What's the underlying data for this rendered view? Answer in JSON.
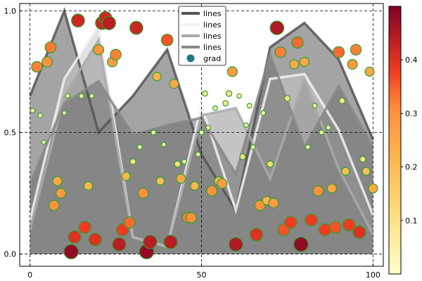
{
  "chart_data": {
    "type": "area",
    "title": "",
    "xlabel": "",
    "ylabel": "",
    "xlim": [
      -3,
      103
    ],
    "ylim": [
      -0.05,
      1.03
    ],
    "xticks": [
      0,
      50,
      100
    ],
    "xtick_labels": [
      "0",
      "50",
      "100"
    ],
    "yticks": [
      0.0,
      0.5,
      1.0
    ],
    "ytick_labels": [
      "0.0",
      "0.5",
      "1.0"
    ],
    "grid": true,
    "grid_style": "dashed",
    "legend_position": "top-center",
    "series": [
      {
        "name": "lines",
        "style": "thick-dark-grey",
        "color": "#555555",
        "x": [
          0,
          10,
          20,
          30,
          40,
          50,
          60,
          70,
          80,
          90,
          100
        ],
        "y": [
          0.65,
          1.0,
          0.5,
          0.65,
          0.84,
          0.41,
          0.18,
          0.85,
          0.95,
          0.8,
          0.47
        ]
      },
      {
        "name": "lines",
        "style": "thick-white",
        "color": "#f2f2f2",
        "x": [
          0,
          10,
          20,
          30,
          40,
          50,
          60,
          70,
          80,
          90,
          100
        ],
        "y": [
          0.14,
          0.72,
          0.94,
          0.07,
          0.03,
          0.61,
          0.18,
          0.72,
          0.74,
          0.51,
          0.16
        ]
      },
      {
        "name": "lines",
        "style": "thick-light-grey",
        "color": "#aaaaaa",
        "x": [
          0,
          10,
          20,
          30,
          40,
          50,
          60,
          70,
          80,
          90,
          100
        ],
        "y": [
          0.1,
          0.65,
          0.88,
          0.07,
          0.03,
          0.57,
          0.6,
          0.31,
          0.72,
          0.35,
          0.08
        ]
      },
      {
        "name": "lines",
        "style": "thick-mid-grey",
        "color": "#888888",
        "x": [
          0,
          10,
          20,
          30,
          40,
          50,
          60,
          70,
          80,
          90,
          100
        ],
        "y": [
          0.29,
          0.62,
          0.71,
          0.49,
          0.53,
          0.56,
          0.33,
          0.82,
          0.44,
          0.69,
          0.44
        ]
      }
    ],
    "scatter": {
      "name": "grad",
      "x": [
        0.8,
        2,
        3,
        4,
        5,
        6,
        7,
        8,
        9,
        10,
        11,
        12,
        13,
        14,
        15,
        16,
        17,
        18,
        19,
        20,
        21,
        22,
        23,
        24,
        25,
        26,
        27,
        28,
        29,
        30,
        31,
        32,
        33,
        34,
        35,
        36,
        37,
        38,
        39,
        40,
        41,
        42,
        43,
        44,
        45,
        46,
        47,
        48,
        49,
        50,
        51,
        52,
        53,
        54,
        55,
        56,
        57,
        58,
        59,
        60,
        61,
        62,
        63,
        64,
        65,
        66,
        67,
        68,
        69,
        70,
        71,
        72,
        73,
        74,
        75,
        76,
        77,
        78,
        79,
        80,
        81,
        82,
        83,
        84,
        85,
        86,
        87,
        88,
        89,
        90,
        91,
        92,
        93,
        94,
        95,
        96,
        97,
        98,
        99,
        100
      ],
      "y": [
        0.59,
        0.77,
        0.57,
        0.46,
        0.79,
        0.85,
        0.2,
        0.3,
        0.25,
        0.58,
        0.65,
        0.01,
        0.07,
        0.96,
        0.65,
        0.11,
        0.28,
        0.65,
        0.06,
        0.84,
        0.95,
        0.97,
        0.95,
        0.79,
        0.82,
        0.04,
        0.1,
        0.32,
        0.13,
        0.38,
        0.93,
        0.44,
        0.25,
        0.01,
        0.05,
        0.5,
        0.73,
        0.3,
        0.45,
        0.88,
        0.05,
        0.7,
        0.37,
        0.31,
        0.38,
        0.15,
        0.15,
        0.28,
        0.41,
        0.5,
        0.66,
        0.52,
        0.26,
        0.6,
        0.3,
        0.29,
        0.62,
        0.66,
        0.75,
        0.04,
        0.65,
        0.4,
        0.53,
        0.61,
        0.44,
        0.08,
        0.2,
        0.58,
        0.22,
        0.37,
        0.21,
        0.93,
        0.83,
        0.1,
        0.64,
        0.13,
        0.78,
        0.87,
        0.04,
        0.79,
        0.44,
        0.14,
        0.61,
        0.26,
        0.5,
        0.1,
        0.52,
        0.27,
        0.11,
        0.83,
        0.63,
        0.34,
        0.12,
        0.78,
        0.84,
        0.09,
        0.39,
        0.34,
        0.75,
        0.27
      ],
      "c": [
        0.05,
        0.32,
        0.05,
        0.03,
        0.3,
        0.33,
        0.3,
        0.25,
        0.28,
        0.03,
        0.04,
        0.48,
        0.4,
        0.42,
        0.06,
        0.38,
        0.22,
        0.04,
        0.4,
        0.3,
        0.42,
        0.42,
        0.44,
        0.28,
        0.32,
        0.44,
        0.38,
        0.22,
        0.34,
        0.1,
        0.42,
        0.06,
        0.3,
        0.48,
        0.44,
        0.05,
        0.22,
        0.2,
        0.04,
        0.36,
        0.44,
        0.25,
        0.12,
        0.25,
        0.05,
        0.32,
        0.3,
        0.22,
        0.05,
        0.05,
        0.08,
        0.05,
        0.3,
        0.05,
        0.22,
        0.28,
        0.08,
        0.1,
        0.28,
        0.45,
        0.04,
        0.1,
        0.05,
        0.05,
        0.05,
        0.4,
        0.3,
        0.05,
        0.22,
        0.12,
        0.28,
        0.45,
        0.32,
        0.36,
        0.1,
        0.38,
        0.25,
        0.34,
        0.48,
        0.25,
        0.05,
        0.38,
        0.05,
        0.3,
        0.05,
        0.38,
        0.05,
        0.25,
        0.36,
        0.34,
        0.1,
        0.2,
        0.38,
        0.28,
        0.32,
        0.4,
        0.1,
        0.2,
        0.25,
        0.25
      ],
      "clim": [
        0.0,
        0.5
      ],
      "colormap": "YlOrRd",
      "edgecolor": "#2ca02c"
    },
    "colorbar": {
      "ticks": [
        0.1,
        0.2,
        0.3,
        0.4
      ],
      "tick_labels": [
        "0.1",
        "0.2",
        "0.3",
        "0.4"
      ],
      "range": [
        0.0,
        0.5
      ]
    },
    "legend": [
      {
        "label": "lines",
        "kind": "line",
        "color": "#555555"
      },
      {
        "label": "lines",
        "kind": "line",
        "color": "#f2f2f2"
      },
      {
        "label": "lines",
        "kind": "line",
        "color": "#aaaaaa"
      },
      {
        "label": "lines",
        "kind": "line",
        "color": "#888888"
      },
      {
        "label": "grad",
        "kind": "marker",
        "color": "#1a7a8a"
      }
    ]
  }
}
